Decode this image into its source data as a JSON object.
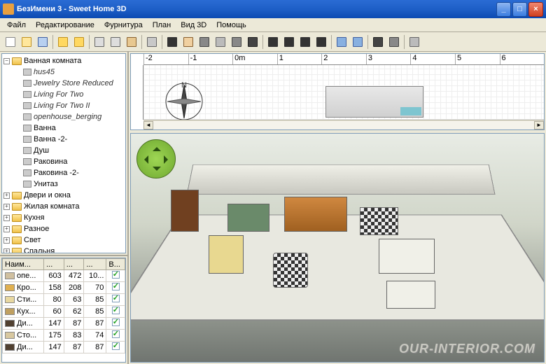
{
  "window": {
    "title": "БезИмени 3 - Sweet Home 3D"
  },
  "menu": {
    "items": [
      "Файл",
      "Редактирование",
      "Фурнитура",
      "План",
      "Вид 3D",
      "Помощь"
    ]
  },
  "toolbar": {
    "groups": [
      [
        {
          "n": "new-icon",
          "c": "#fff",
          "b": "#888"
        },
        {
          "n": "open-icon",
          "c": "#ffe79c",
          "b": "#c09020"
        },
        {
          "n": "save-icon",
          "c": "#b8d0f0",
          "b": "#4060a0"
        }
      ],
      [
        {
          "n": "undo-icon",
          "c": "#ffd860",
          "b": "#c09020"
        },
        {
          "n": "redo-icon",
          "c": "#ffd860",
          "b": "#c09020"
        }
      ],
      [
        {
          "n": "cut-icon",
          "c": "#ddd",
          "b": "#666"
        },
        {
          "n": "copy-icon",
          "c": "#ddd",
          "b": "#666"
        },
        {
          "n": "paste-icon",
          "c": "#e8c890",
          "b": "#886030"
        }
      ],
      [
        {
          "n": "add-furniture-icon",
          "c": "#c8c8c8",
          "b": "#666"
        }
      ],
      [
        {
          "n": "select-icon",
          "c": "#333",
          "b": "#333"
        },
        {
          "n": "pan-icon",
          "c": "#f0d0a0",
          "b": "#886030"
        },
        {
          "n": "wall-icon",
          "c": "#888",
          "b": "#444"
        },
        {
          "n": "room-icon",
          "c": "#bbb",
          "b": "#666"
        },
        {
          "n": "dimension-icon",
          "c": "#888",
          "b": "#444"
        },
        {
          "n": "text-icon",
          "c": "#444",
          "b": "#222"
        }
      ],
      [
        {
          "n": "bold-icon",
          "c": "#333",
          "b": "#333"
        },
        {
          "n": "italic-icon",
          "c": "#333",
          "b": "#333"
        },
        {
          "n": "font-inc-icon",
          "c": "#333",
          "b": "#333"
        },
        {
          "n": "font-dec-icon",
          "c": "#333",
          "b": "#333"
        }
      ],
      [
        {
          "n": "zoom-in-icon",
          "c": "#88b0e0",
          "b": "#4060a0"
        },
        {
          "n": "zoom-out-icon",
          "c": "#88b0e0",
          "b": "#4060a0"
        }
      ],
      [
        {
          "n": "camera-icon",
          "c": "#444",
          "b": "#222"
        },
        {
          "n": "video-icon",
          "c": "#888",
          "b": "#444"
        }
      ],
      [
        {
          "n": "prefs-icon",
          "c": "#bbb",
          "b": "#666"
        }
      ]
    ]
  },
  "tree": {
    "root": {
      "label": "Ванная комната",
      "expanded": true,
      "children": [
        {
          "label": "hus45",
          "italic": true
        },
        {
          "label": "Jewelry Store Reduced",
          "italic": true
        },
        {
          "label": "Living For Two",
          "italic": true
        },
        {
          "label": "Living For Two II",
          "italic": true
        },
        {
          "label": "openhouse_berging",
          "italic": true
        },
        {
          "label": "Ванна"
        },
        {
          "label": "Ванна -2-"
        },
        {
          "label": "Душ"
        },
        {
          "label": "Раковина"
        },
        {
          "label": "Раковина -2-"
        },
        {
          "label": "Унитаз"
        }
      ]
    },
    "siblings": [
      {
        "label": "Двери и окна"
      },
      {
        "label": "Жилая комната"
      },
      {
        "label": "Кухня"
      },
      {
        "label": "Разное"
      },
      {
        "label": "Свет"
      },
      {
        "label": "Спальня"
      }
    ]
  },
  "table": {
    "columns": [
      "Наим...",
      "...",
      "...",
      "...",
      "В..."
    ],
    "rows": [
      {
        "ic": "#d0c0a0",
        "c": [
          "опе...",
          "603",
          "472",
          "10...",
          true
        ]
      },
      {
        "ic": "#e0b050",
        "c": [
          "Кро...",
          "158",
          "208",
          "70",
          true
        ]
      },
      {
        "ic": "#e8d8a0",
        "c": [
          "Сти...",
          "80",
          "63",
          "85",
          true
        ]
      },
      {
        "ic": "#c0a060",
        "c": [
          "Кух...",
          "60",
          "62",
          "85",
          true
        ]
      },
      {
        "ic": "#504030",
        "c": [
          "Ди...",
          "147",
          "87",
          "87",
          true
        ]
      },
      {
        "ic": "#d8c8a0",
        "c": [
          "Сто...",
          "175",
          "83",
          "74",
          true
        ]
      },
      {
        "ic": "#504030",
        "c": [
          "Ди...",
          "147",
          "87",
          "87",
          true
        ]
      }
    ]
  },
  "plan": {
    "ruler_ticks": [
      "-2",
      "-1",
      "0m",
      "1",
      "2",
      "3",
      "4",
      "5",
      "6"
    ]
  },
  "watermark": "OUR-INTERIOR.COM",
  "colors": {
    "titlebar_grad": [
      "#2a6bd4",
      "#0b4ab2"
    ],
    "chrome": "#ece9d8",
    "border": "#aca899",
    "input_border": "#7f9db9"
  }
}
